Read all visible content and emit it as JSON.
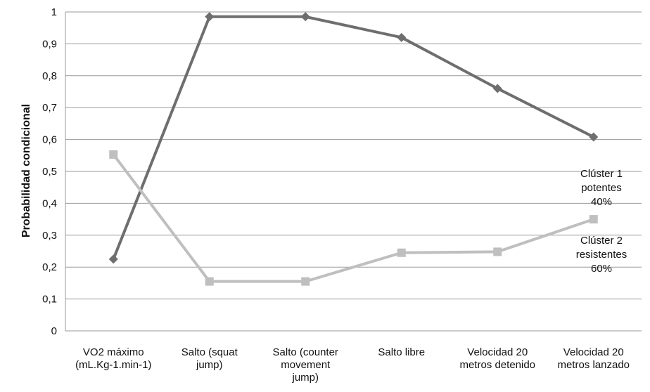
{
  "chart_data": {
    "type": "line",
    "ylabel": "Probabilidad condicional",
    "xlabel": "",
    "ylim": [
      0,
      1
    ],
    "yticks": [
      "0",
      "0,1",
      "0,2",
      "0,3",
      "0,4",
      "0,5",
      "0,6",
      "0,7",
      "0,8",
      "0,9",
      "1"
    ],
    "grid": true,
    "categories": [
      [
        "VO2 máximo",
        "(mL.Kg-1.min-1)"
      ],
      [
        "Salto (squat",
        "jump)"
      ],
      [
        "Salto (counter",
        "movement",
        "jump)"
      ],
      [
        "Salto libre"
      ],
      [
        "Velocidad 20",
        "metros detenido"
      ],
      [
        "Velocidad 20",
        "metros lanzado"
      ]
    ],
    "series": [
      {
        "values": [
          0.225,
          0.985,
          0.985,
          0.92,
          0.76,
          0.608
        ],
        "color": "#6e6e6e",
        "marker": "diamond",
        "label": [
          "Clúster 1",
          "potentes",
          "40%"
        ]
      },
      {
        "values": [
          0.553,
          0.155,
          0.155,
          0.245,
          0.248,
          0.35
        ],
        "color": "#bfbfbf",
        "marker": "square",
        "label": [
          "Clúster 2",
          "resistentes",
          "60%"
        ]
      }
    ]
  }
}
